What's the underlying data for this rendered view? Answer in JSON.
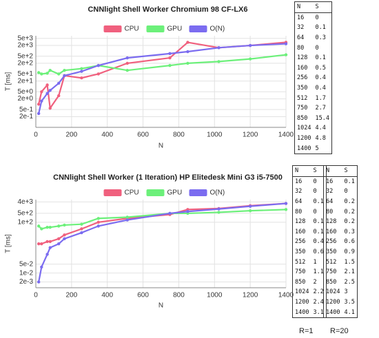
{
  "chart_data": [
    {
      "type": "line",
      "title": "CNNlight Shell Worker Chromium 98 CF-LX6",
      "xlabel": "N",
      "ylabel": "T [ms]",
      "yscale": "log",
      "grid": true,
      "legend": "top",
      "x": [
        16,
        32,
        64,
        80,
        128,
        160,
        256,
        350,
        512,
        750,
        850,
        1024,
        1200,
        1400
      ],
      "series": [
        {
          "name": "CPU",
          "color": "#f0607e",
          "values": [
            1,
            5,
            12,
            0.6,
            3,
            40,
            30,
            50,
            200,
            400,
            3000,
            1500,
            2000,
            3000
          ]
        },
        {
          "name": "GPU",
          "color": "#6cf07a",
          "values": [
            60,
            50,
            55,
            80,
            50,
            80,
            100,
            150,
            80,
            150,
            200,
            250,
            350,
            600
          ]
        },
        {
          "name": "O(N)",
          "color": "#7b6cf0",
          "values": [
            0.3,
            1.5,
            4,
            6,
            15,
            40,
            70,
            150,
            400,
            700,
            900,
            1500,
            2000,
            2500
          ]
        }
      ],
      "xlim": [
        0,
        1400
      ],
      "xticks": [
        0,
        200,
        400,
        600,
        800,
        1000,
        1200,
        1400
      ],
      "ylim": [
        0.05,
        7000
      ],
      "yticks": [
        {
          "value": 5000,
          "label": "5e+3"
        },
        {
          "value": 2000,
          "label": "2e+3"
        },
        {
          "value": 500,
          "label": "5e+2"
        },
        {
          "value": 200,
          "label": "2e+2"
        },
        {
          "value": 50,
          "label": "5e+1"
        },
        {
          "value": 20,
          "label": "2e+1"
        },
        {
          "value": 5,
          "label": "5e+0"
        },
        {
          "value": 2,
          "label": "2e+0"
        },
        {
          "value": 0.5,
          "label": "5e-1"
        },
        {
          "value": 0.2,
          "label": "2e-1"
        }
      ]
    },
    {
      "type": "line",
      "title": "CNNlight Shell Worker (1 Iteration) HP Elitedesk Mini G3 i5-7500",
      "xlabel": "N",
      "ylabel": "T [ms]",
      "yscale": "log",
      "grid": true,
      "legend": "top",
      "x": [
        16,
        32,
        64,
        80,
        128,
        160,
        256,
        350,
        512,
        750,
        850,
        1024,
        1200,
        1400
      ],
      "series": [
        {
          "name": "CPU",
          "color": "#f0607e",
          "values": [
            2,
            2,
            3,
            3,
            5,
            10,
            30,
            100,
            200,
            400,
            1000,
            1200,
            2000,
            3000
          ]
        },
        {
          "name": "GPU",
          "color": "#6cf07a",
          "values": [
            50,
            30,
            40,
            40,
            50,
            60,
            70,
            200,
            250,
            500,
            500,
            600,
            800,
            1000
          ]
        },
        {
          "name": "O(N)",
          "color": "#7b6cf0",
          "values": [
            0.002,
            0.03,
            0.3,
            1,
            2,
            5,
            15,
            50,
            150,
            500,
            700,
            1100,
            1800,
            3000
          ]
        }
      ],
      "xlim": [
        0,
        1400
      ],
      "xticks": [
        0,
        200,
        400,
        600,
        800,
        1000,
        1200,
        1400
      ],
      "ylim": [
        0.0007,
        6000
      ],
      "yticks": [
        {
          "value": 4000,
          "label": "4e+3"
        },
        {
          "value": 500,
          "label": "5e+2"
        },
        {
          "value": 100,
          "label": "1e+2"
        },
        {
          "value": 0.05,
          "label": "5e-2"
        },
        {
          "value": 0.01,
          "label": "1e-2"
        },
        {
          "value": 0.002,
          "label": "2e-3"
        }
      ]
    }
  ],
  "tables": [
    {
      "columns": [
        "N",
        "S"
      ],
      "rows": [
        [
          16,
          0
        ],
        [
          32,
          0.1
        ],
        [
          64,
          0.3
        ],
        [
          80,
          0
        ],
        [
          128,
          0.1
        ],
        [
          160,
          0.5
        ],
        [
          256,
          0.4
        ],
        [
          350,
          0.4
        ],
        [
          512,
          1.7
        ],
        [
          750,
          2.7
        ],
        [
          850,
          15.4
        ],
        [
          1024,
          4.4
        ],
        [
          1200,
          4.8
        ],
        [
          1400,
          5
        ]
      ]
    },
    {
      "caption": "R=1",
      "columns": [
        "N",
        "S"
      ],
      "rows": [
        [
          16,
          0
        ],
        [
          32,
          0
        ],
        [
          64,
          0.1
        ],
        [
          80,
          0
        ],
        [
          128,
          0.1
        ],
        [
          160,
          0.1
        ],
        [
          256,
          0.4
        ],
        [
          350,
          0.6
        ],
        [
          512,
          1
        ],
        [
          750,
          1.1
        ],
        [
          850,
          2
        ],
        [
          1024,
          2.2
        ],
        [
          1200,
          2.4
        ],
        [
          1400,
          3.1
        ]
      ]
    },
    {
      "caption": "R=20",
      "columns": [
        "N",
        "S"
      ],
      "rows": [
        [
          16,
          0.1
        ],
        [
          32,
          0
        ],
        [
          64,
          0.2
        ],
        [
          80,
          0.2
        ],
        [
          128,
          0.2
        ],
        [
          160,
          0.3
        ],
        [
          256,
          0.6
        ],
        [
          350,
          0.9
        ],
        [
          512,
          1.5
        ],
        [
          750,
          2.1
        ],
        [
          850,
          2.5
        ],
        [
          1024,
          3
        ],
        [
          1200,
          3.5
        ],
        [
          1400,
          4.1
        ]
      ]
    }
  ]
}
